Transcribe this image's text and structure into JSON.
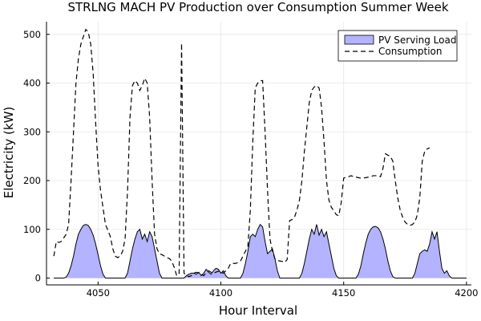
{
  "chart_data": {
    "type": "line",
    "title": "STRLNG MACH PV Production over Consumption Summer Week",
    "xlabel": "Hour Interval",
    "ylabel": "Electricity (kW)",
    "xlim": [
      4029,
      4202
    ],
    "ylim": [
      -14,
      526
    ],
    "xticks": [
      4050,
      4100,
      4150,
      4200
    ],
    "yticks": [
      0,
      100,
      200,
      300,
      400,
      500
    ],
    "grid": true,
    "legend_position": "top-right",
    "series": [
      {
        "name": "PV Serving Load",
        "kind": "area",
        "color": "#b3b3ff",
        "points": [
          [
            4032,
            0
          ],
          [
            4036,
            0
          ],
          [
            4037,
            2
          ],
          [
            4038,
            10
          ],
          [
            4039,
            25
          ],
          [
            4040,
            45
          ],
          [
            4041,
            70
          ],
          [
            4042,
            90
          ],
          [
            4043,
            100
          ],
          [
            4044,
            108
          ],
          [
            4045,
            110
          ],
          [
            4046,
            108
          ],
          [
            4047,
            100
          ],
          [
            4048,
            88
          ],
          [
            4049,
            70
          ],
          [
            4050,
            48
          ],
          [
            4051,
            25
          ],
          [
            4052,
            8
          ],
          [
            4053,
            0
          ],
          [
            4061,
            0
          ],
          [
            4062,
            10
          ],
          [
            4063,
            35
          ],
          [
            4064,
            60
          ],
          [
            4065,
            80
          ],
          [
            4066,
            95
          ],
          [
            4067,
            100
          ],
          [
            4068,
            80
          ],
          [
            4069,
            90
          ],
          [
            4070,
            75
          ],
          [
            4071,
            95
          ],
          [
            4072,
            85
          ],
          [
            4073,
            60
          ],
          [
            4074,
            35
          ],
          [
            4075,
            10
          ],
          [
            4076,
            0
          ],
          [
            4085,
            0
          ],
          [
            4086,
            5
          ],
          [
            4087,
            8
          ],
          [
            4088,
            10
          ],
          [
            4089,
            10
          ],
          [
            4090,
            8
          ],
          [
            4091,
            12
          ],
          [
            4092,
            5
          ],
          [
            4093,
            10
          ],
          [
            4094,
            18
          ],
          [
            4095,
            12
          ],
          [
            4096,
            8
          ],
          [
            4097,
            15
          ],
          [
            4098,
            20
          ],
          [
            4099,
            18
          ],
          [
            4100,
            10
          ],
          [
            4101,
            15
          ],
          [
            4102,
            5
          ],
          [
            4103,
            0
          ],
          [
            4108,
            0
          ],
          [
            4109,
            10
          ],
          [
            4110,
            30
          ],
          [
            4111,
            55
          ],
          [
            4112,
            85
          ],
          [
            4113,
            90
          ],
          [
            4114,
            85
          ],
          [
            4115,
            100
          ],
          [
            4116,
            110
          ],
          [
            4117,
            105
          ],
          [
            4118,
            75
          ],
          [
            4119,
            50
          ],
          [
            4120,
            55
          ],
          [
            4121,
            60
          ],
          [
            4122,
            40
          ],
          [
            4123,
            15
          ],
          [
            4124,
            0
          ],
          [
            4132,
            0
          ],
          [
            4133,
            10
          ],
          [
            4134,
            30
          ],
          [
            4135,
            55
          ],
          [
            4136,
            80
          ],
          [
            4137,
            100
          ],
          [
            4138,
            90
          ],
          [
            4139,
            110
          ],
          [
            4140,
            88
          ],
          [
            4141,
            100
          ],
          [
            4142,
            85
          ],
          [
            4143,
            95
          ],
          [
            4144,
            70
          ],
          [
            4145,
            45
          ],
          [
            4146,
            20
          ],
          [
            4147,
            5
          ],
          [
            4148,
            0
          ],
          [
            4155,
            0
          ],
          [
            4156,
            8
          ],
          [
            4157,
            25
          ],
          [
            4158,
            50
          ],
          [
            4159,
            72
          ],
          [
            4160,
            90
          ],
          [
            4161,
            100
          ],
          [
            4162,
            105
          ],
          [
            4163,
            106
          ],
          [
            4164,
            103
          ],
          [
            4165,
            95
          ],
          [
            4166,
            80
          ],
          [
            4167,
            60
          ],
          [
            4168,
            35
          ],
          [
            4169,
            15
          ],
          [
            4170,
            3
          ],
          [
            4171,
            0
          ],
          [
            4178,
            0
          ],
          [
            4179,
            10
          ],
          [
            4180,
            30
          ],
          [
            4181,
            50
          ],
          [
            4182,
            55
          ],
          [
            4183,
            58
          ],
          [
            4184,
            55
          ],
          [
            4185,
            70
          ],
          [
            4186,
            95
          ],
          [
            4187,
            80
          ],
          [
            4188,
            95
          ],
          [
            4189,
            55
          ],
          [
            4190,
            20
          ],
          [
            4191,
            10
          ],
          [
            4192,
            15
          ],
          [
            4193,
            5
          ],
          [
            4194,
            0
          ],
          [
            4200,
            0
          ]
        ]
      },
      {
        "name": "Consumption",
        "kind": "line",
        "style": "dashed",
        "color": "#000000",
        "points": [
          [
            4032,
            45
          ],
          [
            4033,
            75
          ],
          [
            4034,
            73
          ],
          [
            4035,
            75
          ],
          [
            4036,
            82
          ],
          [
            4037,
            90
          ],
          [
            4038,
            110
          ],
          [
            4039,
            200
          ],
          [
            4040,
            300
          ],
          [
            4041,
            400
          ],
          [
            4042,
            450
          ],
          [
            4043,
            480
          ],
          [
            4044,
            495
          ],
          [
            4045,
            510
          ],
          [
            4046,
            505
          ],
          [
            4047,
            480
          ],
          [
            4048,
            420
          ],
          [
            4049,
            320
          ],
          [
            4050,
            230
          ],
          [
            4051,
            180
          ],
          [
            4052,
            145
          ],
          [
            4053,
            110
          ],
          [
            4054,
            98
          ],
          [
            4055,
            85
          ],
          [
            4056,
            60
          ],
          [
            4057,
            45
          ],
          [
            4058,
            42
          ],
          [
            4059,
            45
          ],
          [
            4060,
            55
          ],
          [
            4061,
            80
          ],
          [
            4062,
            180
          ],
          [
            4063,
            330
          ],
          [
            4064,
            395
          ],
          [
            4065,
            405
          ],
          [
            4066,
            400
          ],
          [
            4067,
            385
          ],
          [
            4068,
            395
          ],
          [
            4069,
            410
          ],
          [
            4070,
            400
          ],
          [
            4071,
            330
          ],
          [
            4072,
            200
          ],
          [
            4073,
            90
          ],
          [
            4074,
            60
          ],
          [
            4075,
            50
          ],
          [
            4076,
            48
          ],
          [
            4077,
            45
          ],
          [
            4078,
            42
          ],
          [
            4079,
            40
          ],
          [
            4080,
            35
          ],
          [
            4081,
            22
          ],
          [
            4082,
            5
          ],
          [
            4083,
            8
          ],
          [
            4084,
            482
          ],
          [
            4085,
            10
          ],
          [
            4086,
            5
          ],
          [
            4087,
            3
          ],
          [
            4088,
            5
          ],
          [
            4089,
            10
          ],
          [
            4090,
            12
          ],
          [
            4091,
            10
          ],
          [
            4092,
            8
          ],
          [
            4093,
            5
          ],
          [
            4094,
            10
          ],
          [
            4095,
            15
          ],
          [
            4096,
            12
          ],
          [
            4097,
            10
          ],
          [
            4098,
            12
          ],
          [
            4099,
            14
          ],
          [
            4100,
            12
          ],
          [
            4101,
            10
          ],
          [
            4102,
            15
          ],
          [
            4103,
            20
          ],
          [
            4104,
            30
          ],
          [
            4105,
            30
          ],
          [
            4106,
            30
          ],
          [
            4107,
            32
          ],
          [
            4108,
            35
          ],
          [
            4109,
            45
          ],
          [
            4110,
            55
          ],
          [
            4111,
            65
          ],
          [
            4112,
            140
          ],
          [
            4113,
            280
          ],
          [
            4114,
            390
          ],
          [
            4115,
            400
          ],
          [
            4116,
            405
          ],
          [
            4117,
            405
          ],
          [
            4118,
            300
          ],
          [
            4119,
            180
          ],
          [
            4120,
            80
          ],
          [
            4121,
            55
          ],
          [
            4122,
            40
          ],
          [
            4123,
            36
          ],
          [
            4124,
            35
          ],
          [
            4125,
            34
          ],
          [
            4126,
            32
          ],
          [
            4127,
            38
          ],
          [
            4128,
            118
          ],
          [
            4129,
            120
          ],
          [
            4130,
            125
          ],
          [
            4131,
            140
          ],
          [
            4132,
            160
          ],
          [
            4133,
            200
          ],
          [
            4134,
            260
          ],
          [
            4135,
            310
          ],
          [
            4136,
            360
          ],
          [
            4137,
            385
          ],
          [
            4138,
            392
          ],
          [
            4139,
            395
          ],
          [
            4140,
            390
          ],
          [
            4141,
            350
          ],
          [
            4142,
            280
          ],
          [
            4143,
            200
          ],
          [
            4144,
            160
          ],
          [
            4145,
            145
          ],
          [
            4146,
            138
          ],
          [
            4147,
            130
          ],
          [
            4148,
            128
          ],
          [
            4149,
            155
          ],
          [
            4150,
            205
          ],
          [
            4151,
            207
          ],
          [
            4152,
            208
          ],
          [
            4153,
            210
          ],
          [
            4154,
            208
          ],
          [
            4155,
            207
          ],
          [
            4156,
            206
          ],
          [
            4157,
            205
          ],
          [
            4158,
            205
          ],
          [
            4159,
            206
          ],
          [
            4160,
            207
          ],
          [
            4161,
            208
          ],
          [
            4162,
            210
          ],
          [
            4163,
            210
          ],
          [
            4164,
            210
          ],
          [
            4165,
            208
          ],
          [
            4166,
            225
          ],
          [
            4167,
            255
          ],
          [
            4168,
            252
          ],
          [
            4169,
            250
          ],
          [
            4170,
            240
          ],
          [
            4171,
            200
          ],
          [
            4172,
            165
          ],
          [
            4173,
            140
          ],
          [
            4174,
            125
          ],
          [
            4175,
            115
          ],
          [
            4176,
            110
          ],
          [
            4177,
            108
          ],
          [
            4178,
            110
          ],
          [
            4179,
            115
          ],
          [
            4180,
            130
          ],
          [
            4181,
            165
          ],
          [
            4182,
            240
          ],
          [
            4183,
            260
          ],
          [
            4184,
            265
          ],
          [
            4185,
            267
          ]
        ]
      }
    ]
  }
}
